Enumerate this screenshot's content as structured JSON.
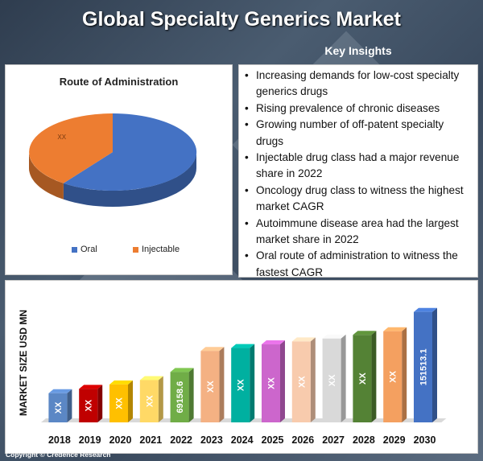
{
  "title": "Global Specialty Generics Market",
  "copyright": "Copyright © Credence Research",
  "chart_data": [
    {
      "type": "pie",
      "title": "Route of Administration",
      "slices": [
        {
          "name": "Oral",
          "value": 60,
          "color": "#4472c4"
        },
        {
          "name": "Injectable",
          "value": 40,
          "color": "#ed7d31"
        }
      ],
      "data_label": "XX",
      "legend": "bottom"
    },
    {
      "type": "bar",
      "ylabel": "MARKET SIZE USD MN",
      "categories": [
        "2018",
        "2019",
        "2020",
        "2021",
        "2022",
        "2023",
        "2024",
        "2025",
        "2026",
        "2027",
        "2028",
        "2029",
        "2030"
      ],
      "values": [
        40000,
        46000,
        52000,
        58000,
        69158.6,
        98000,
        102000,
        107000,
        111000,
        115000,
        120000,
        125000,
        151513.1
      ],
      "labels": [
        "XX",
        "XX",
        "XX",
        "XX",
        "69158.6",
        "XX",
        "XX",
        "XX",
        "XX",
        "XX",
        "XX",
        "XX",
        "151513.1"
      ],
      "colors": [
        "#5b87c5",
        "#c00000",
        "#ffc000",
        "#ffd966",
        "#70ad47",
        "#f4b183",
        "#00b0a0",
        "#cc66cc",
        "#f8cbad",
        "#d9d9d9",
        "#548235",
        "#f4a060",
        "#4472c4"
      ],
      "ylim": [
        0,
        160000
      ]
    }
  ],
  "insights": {
    "title": "Key Insights",
    "items": [
      "Increasing demands for low-cost specialty generics drugs",
      "Rising prevalence of chronic diseases",
      "Growing number of off-patent specialty drugs",
      "Injectable drug class had a major revenue share in 2022",
      "Oncology drug class to witness the highest market CAGR",
      "Autoimmune disease area had the largest market share in 2022",
      "Oral route of administration to witness the fastest CAGR"
    ]
  }
}
